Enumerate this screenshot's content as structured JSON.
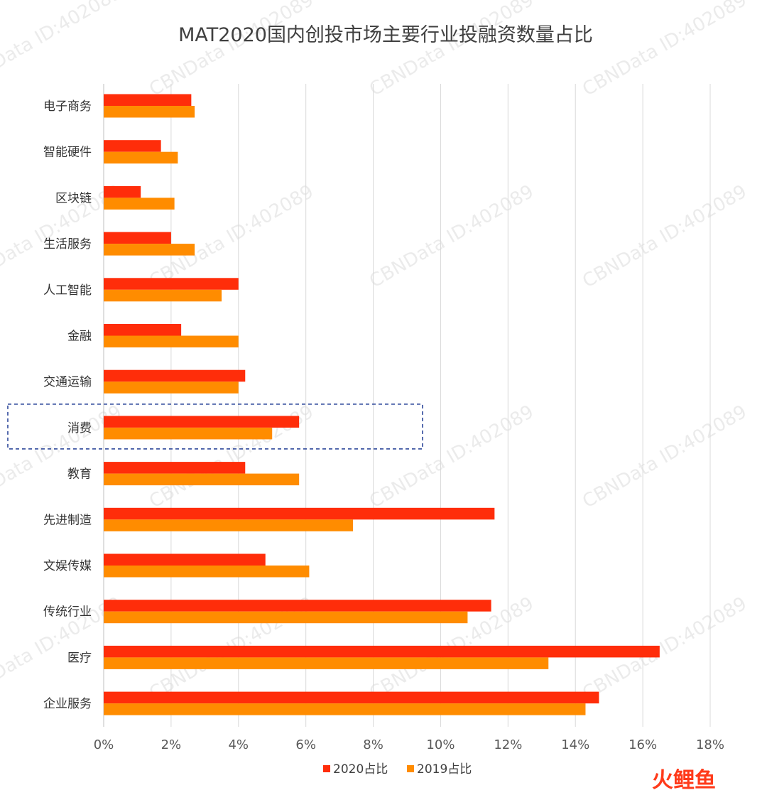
{
  "chart_data": {
    "type": "bar",
    "orientation": "horizontal",
    "title": "MAT2020国内创投市场主要行业投融资数量占比",
    "categories": [
      "电子商务",
      "智能硬件",
      "区块链",
      "生活服务",
      "人工智能",
      "金融",
      "交通运输",
      "消费",
      "教育",
      "先进制造",
      "文娱传媒",
      "传统行业",
      "医疗",
      "企业服务"
    ],
    "series": [
      {
        "name": "2020占比",
        "color": "#ff2d0a",
        "values": [
          2.6,
          1.7,
          1.1,
          2.0,
          4.0,
          2.3,
          4.2,
          5.8,
          4.2,
          11.6,
          4.8,
          11.5,
          16.5,
          14.7
        ]
      },
      {
        "name": "2019占比",
        "color": "#ff8c00",
        "values": [
          2.7,
          2.2,
          2.1,
          2.7,
          3.5,
          4.0,
          4.0,
          5.0,
          5.8,
          7.4,
          6.1,
          10.8,
          13.2,
          14.3
        ]
      }
    ],
    "xlim": [
      0,
      18
    ],
    "xticks": [
      0,
      2,
      4,
      6,
      8,
      10,
      12,
      14,
      16,
      18
    ],
    "tick_suffix": "%",
    "grid": true,
    "legend_position": "bottom",
    "highlight_category": "消费"
  },
  "watermark": "CBNData ID:402089",
  "logo": {
    "text": "火鲤鱼"
  }
}
